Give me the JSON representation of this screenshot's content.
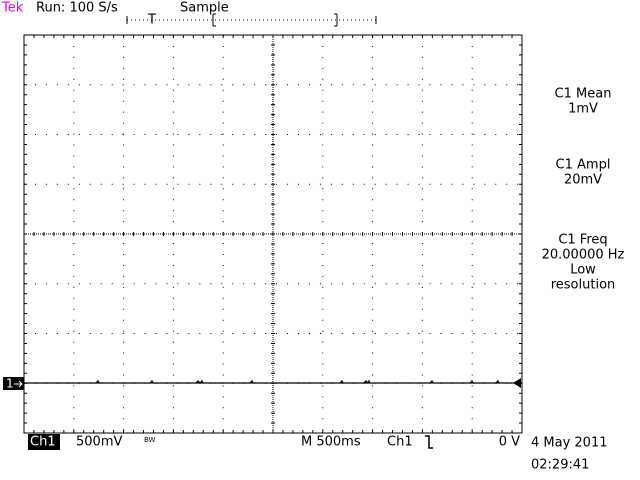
{
  "header": {
    "brand": "Tek",
    "status": "Run: 100 S/s",
    "mode": "Sample",
    "trigger_marker": "T"
  },
  "channel_marker": "1",
  "measurements": [
    {
      "lines": [
        "C1 Mean",
        "1mV"
      ]
    },
    {
      "lines": [
        "C1 Ampl",
        "20mV"
      ]
    },
    {
      "lines": [
        "C1 Freq",
        "20.00000 Hz",
        "Low",
        "resolution"
      ]
    }
  ],
  "footer": {
    "channel": "Ch1",
    "scale": "500mV",
    "bandwidth": "BW",
    "timebase": "M 500ms",
    "trigger_source": "Ch1",
    "trigger_level": "0 V",
    "date": "4 May 2011",
    "time": "02:29:41"
  }
}
